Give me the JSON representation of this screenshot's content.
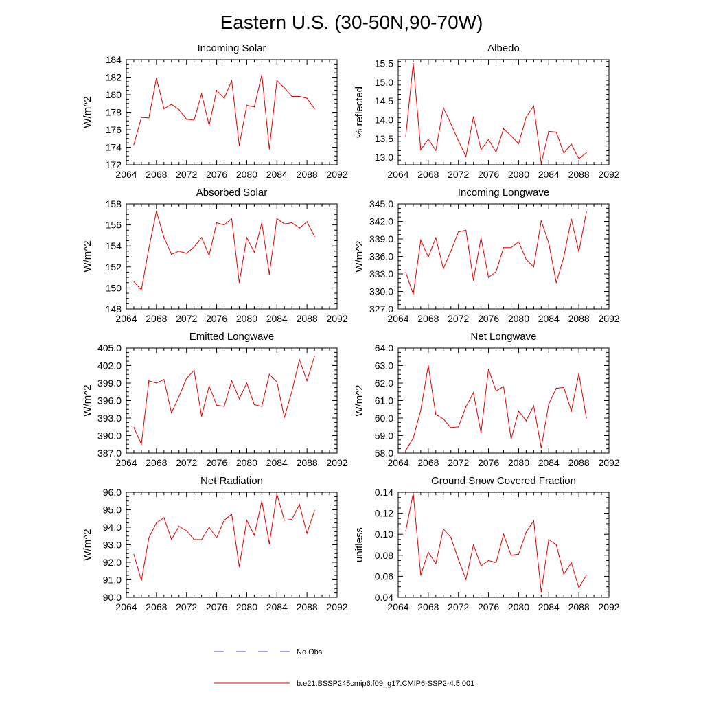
{
  "figure": {
    "title": "Eastern U.S. (30-50N,90-70W)"
  },
  "legend": {
    "items": [
      {
        "label": "No Obs",
        "style": "dashed",
        "color": "#3f3fbf"
      },
      {
        "label": "b.e21.BSSP245cmip6.f09_g17.CMIP6-SSP2-4.5.001",
        "style": "solid",
        "color": "#e00000"
      }
    ]
  },
  "chart_data": [
    {
      "type": "line",
      "title": "Incoming Solar",
      "ylabel": "W/m^2",
      "xlim": [
        2064,
        2092
      ],
      "ylim": [
        172,
        184
      ],
      "xticks": [
        "2064",
        "2068",
        "2072",
        "2076",
        "2080",
        "2084",
        "2088",
        "2092"
      ],
      "yticks": [
        "172",
        "174",
        "176",
        "178",
        "180",
        "182",
        "184"
      ],
      "x": [
        2065,
        2066,
        2067,
        2068,
        2069,
        2070,
        2071,
        2072,
        2073,
        2074,
        2075,
        2076,
        2077,
        2078,
        2079,
        2080,
        2081,
        2082,
        2083,
        2084,
        2085,
        2086,
        2087,
        2088,
        2089
      ],
      "series": [
        {
          "color": "#e00000",
          "values": [
            174.3,
            177.4,
            177.35,
            181.9,
            178.4,
            178.9,
            178.3,
            177.2,
            177.1,
            180.1,
            176.5,
            180.5,
            179.6,
            181.6,
            174.2,
            178.8,
            178.6,
            182.3,
            173.8,
            181.6,
            180.8,
            179.8,
            179.8,
            179.6,
            178.4
          ]
        }
      ]
    },
    {
      "type": "line",
      "title": "Albedo",
      "ylabel": "% reflected",
      "xlim": [
        2064,
        2092
      ],
      "ylim": [
        12.8,
        15.6
      ],
      "xticks": [
        "2064",
        "2068",
        "2072",
        "2076",
        "2080",
        "2084",
        "2088",
        "2092"
      ],
      "yticks": [
        "13.0",
        "13.5",
        "14.0",
        "14.5",
        "15.0",
        "15.5"
      ],
      "x": [
        2065,
        2066,
        2067,
        2068,
        2069,
        2070,
        2071,
        2072,
        2073,
        2074,
        2075,
        2076,
        2077,
        2078,
        2079,
        2080,
        2081,
        2082,
        2083,
        2084,
        2085,
        2086,
        2087,
        2088,
        2089
      ],
      "series": [
        {
          "color": "#e00000",
          "values": [
            13.55,
            15.5,
            13.2,
            13.48,
            13.18,
            14.32,
            13.89,
            13.44,
            13.02,
            14.08,
            13.2,
            13.47,
            13.14,
            13.76,
            13.57,
            13.36,
            14.07,
            14.37,
            12.84,
            13.69,
            13.67,
            13.11,
            13.35,
            12.96,
            13.12
          ]
        }
      ]
    },
    {
      "type": "line",
      "title": "Absorbed Solar",
      "ylabel": "W/m^2",
      "xlim": [
        2064,
        2092
      ],
      "ylim": [
        148,
        158
      ],
      "xticks": [
        "2064",
        "2068",
        "2072",
        "2076",
        "2080",
        "2084",
        "2088",
        "2092"
      ],
      "yticks": [
        "148",
        "150",
        "152",
        "154",
        "156",
        "158"
      ],
      "x": [
        2065,
        2066,
        2067,
        2068,
        2069,
        2070,
        2071,
        2072,
        2073,
        2074,
        2075,
        2076,
        2077,
        2078,
        2079,
        2080,
        2081,
        2082,
        2083,
        2084,
        2085,
        2086,
        2087,
        2088,
        2089
      ],
      "series": [
        {
          "color": "#e00000",
          "values": [
            150.6,
            149.8,
            153.8,
            157.3,
            154.8,
            153.2,
            153.5,
            153.3,
            153.9,
            154.8,
            153.1,
            156.2,
            156.0,
            156.6,
            150.5,
            154.8,
            153.4,
            156.2,
            151.3,
            156.6,
            156.1,
            156.2,
            155.7,
            156.3,
            154.9
          ]
        }
      ]
    },
    {
      "type": "line",
      "title": "Incoming Longwave",
      "ylabel": "W/m^2",
      "xlim": [
        2064,
        2092
      ],
      "ylim": [
        327,
        345
      ],
      "xticks": [
        "2064",
        "2068",
        "2072",
        "2076",
        "2080",
        "2084",
        "2088",
        "2092"
      ],
      "yticks": [
        "327.0",
        "330.0",
        "333.0",
        "336.0",
        "339.0",
        "342.0",
        "345.0"
      ],
      "x": [
        2065,
        2066,
        2067,
        2068,
        2069,
        2070,
        2071,
        2072,
        2073,
        2074,
        2075,
        2076,
        2077,
        2078,
        2079,
        2080,
        2081,
        2082,
        2083,
        2084,
        2085,
        2086,
        2087,
        2088,
        2089
      ],
      "series": [
        {
          "color": "#e00000",
          "values": [
            333.3,
            329.5,
            338.8,
            335.9,
            339.2,
            333.9,
            336.9,
            340.2,
            340.5,
            331.9,
            339.2,
            332.4,
            333.4,
            337.5,
            337.5,
            338.5,
            335.5,
            334.2,
            342.1,
            338.3,
            331.5,
            335.9,
            342.4,
            336.8,
            343.6
          ]
        }
      ]
    },
    {
      "type": "line",
      "title": "Emitted Longwave",
      "ylabel": "W/m^2",
      "xlim": [
        2064,
        2092
      ],
      "ylim": [
        387,
        405
      ],
      "xticks": [
        "2064",
        "2068",
        "2072",
        "2076",
        "2080",
        "2084",
        "2088",
        "2092"
      ],
      "yticks": [
        "387.0",
        "390.0",
        "393.0",
        "396.0",
        "399.0",
        "402.0",
        "405.0"
      ],
      "x": [
        2065,
        2066,
        2067,
        2068,
        2069,
        2070,
        2071,
        2072,
        2073,
        2074,
        2075,
        2076,
        2077,
        2078,
        2079,
        2080,
        2081,
        2082,
        2083,
        2084,
        2085,
        2086,
        2087,
        2088,
        2089
      ],
      "series": [
        {
          "color": "#e00000",
          "values": [
            391.4,
            388.5,
            399.4,
            399.0,
            399.6,
            393.9,
            396.7,
            399.8,
            401.2,
            393.3,
            398.5,
            395.2,
            395.0,
            399.4,
            396.3,
            399.0,
            395.3,
            395.0,
            400.5,
            399.2,
            393.1,
            397.6,
            403.0,
            399.4,
            403.6
          ]
        }
      ]
    },
    {
      "type": "line",
      "title": "Net Longwave",
      "ylabel": "W/m^2",
      "xlim": [
        2064,
        2092
      ],
      "ylim": [
        58,
        64
      ],
      "xticks": [
        "2064",
        "2068",
        "2072",
        "2076",
        "2080",
        "2084",
        "2088",
        "2092"
      ],
      "yticks": [
        "58.0",
        "59.0",
        "60.0",
        "61.0",
        "62.0",
        "63.0",
        "64.0"
      ],
      "x": [
        2065,
        2066,
        2067,
        2068,
        2069,
        2070,
        2071,
        2072,
        2073,
        2074,
        2075,
        2076,
        2077,
        2078,
        2079,
        2080,
        2081,
        2082,
        2083,
        2084,
        2085,
        2086,
        2087,
        2088,
        2089
      ],
      "series": [
        {
          "color": "#e00000",
          "values": [
            58.15,
            58.85,
            60.45,
            63.0,
            60.2,
            59.95,
            59.45,
            59.5,
            60.65,
            61.45,
            59.15,
            62.8,
            61.55,
            61.8,
            58.8,
            60.4,
            59.85,
            60.7,
            58.3,
            60.8,
            61.7,
            61.75,
            60.4,
            62.55,
            60.0
          ]
        }
      ]
    },
    {
      "type": "line",
      "title": "Net Radiation",
      "ylabel": "W/m^2",
      "xlim": [
        2064,
        2092
      ],
      "ylim": [
        90,
        96
      ],
      "xticks": [
        "2064",
        "2068",
        "2072",
        "2076",
        "2080",
        "2084",
        "2088",
        "2092"
      ],
      "yticks": [
        "90.0",
        "91.0",
        "92.0",
        "93.0",
        "94.0",
        "95.0",
        "96.0"
      ],
      "x": [
        2065,
        2066,
        2067,
        2068,
        2069,
        2070,
        2071,
        2072,
        2073,
        2074,
        2075,
        2076,
        2077,
        2078,
        2079,
        2080,
        2081,
        2082,
        2083,
        2084,
        2085,
        2086,
        2087,
        2088,
        2089
      ],
      "series": [
        {
          "color": "#e00000",
          "values": [
            92.45,
            90.95,
            93.4,
            94.25,
            94.55,
            93.3,
            94.05,
            93.8,
            93.3,
            93.3,
            94.0,
            93.4,
            94.4,
            94.75,
            91.75,
            94.4,
            93.55,
            95.5,
            93.05,
            95.9,
            94.4,
            94.45,
            95.3,
            93.65,
            94.95
          ]
        }
      ]
    },
    {
      "type": "line",
      "title": "Ground Snow Covered Fraction",
      "ylabel": "unitless",
      "xlim": [
        2064,
        2092
      ],
      "ylim": [
        0.04,
        0.14
      ],
      "xticks": [
        "2064",
        "2068",
        "2072",
        "2076",
        "2080",
        "2084",
        "2088",
        "2092"
      ],
      "yticks": [
        "0.04",
        "0.06",
        "0.08",
        "0.10",
        "0.12",
        "0.14"
      ],
      "x": [
        2065,
        2066,
        2067,
        2068,
        2069,
        2070,
        2071,
        2072,
        2073,
        2074,
        2075,
        2076,
        2077,
        2078,
        2079,
        2080,
        2081,
        2082,
        2083,
        2084,
        2085,
        2086,
        2087,
        2088,
        2089
      ],
      "series": [
        {
          "color": "#e00000",
          "values": [
            0.103,
            0.139,
            0.061,
            0.083,
            0.072,
            0.105,
            0.097,
            0.076,
            0.057,
            0.09,
            0.07,
            0.075,
            0.073,
            0.1,
            0.08,
            0.081,
            0.102,
            0.113,
            0.045,
            0.095,
            0.09,
            0.062,
            0.073,
            0.049,
            0.061
          ]
        }
      ]
    }
  ]
}
